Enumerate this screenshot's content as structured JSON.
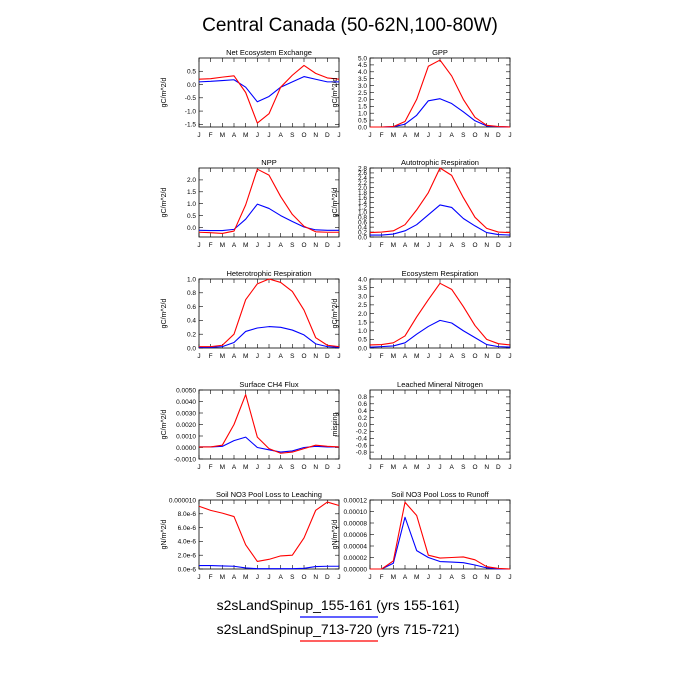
{
  "title": "Central Canada (50-62N,100-80W)",
  "colors": {
    "series1": "#0000ff",
    "series2": "#ff0000",
    "axis": "#000000"
  },
  "legend": [
    {
      "label": "s2sLandSpinup_155-161 (yrs 155-161)",
      "color": "#0000ff"
    },
    {
      "label": "s2sLandSpinup_713-720 (yrs 715-721)",
      "color": "#ff0000"
    }
  ],
  "chart_data": [
    {
      "type": "line",
      "title": "Net Ecosystem Exchange",
      "ylabel": "gC/m^2/d",
      "categories": [
        "J",
        "F",
        "M",
        "A",
        "M",
        "J",
        "J",
        "A",
        "S",
        "O",
        "N",
        "D",
        "J"
      ],
      "ylim": [
        -1.6,
        1.0
      ],
      "yticks": [
        -1.5,
        -1.0,
        -0.5,
        0.0,
        0.5
      ],
      "yticklabels": [
        "-1.5",
        "-1.0",
        "-0.5",
        "0.0",
        "0.5"
      ],
      "series": [
        {
          "color": "#0000ff",
          "values": [
            0.1,
            0.12,
            0.15,
            0.18,
            -0.1,
            -0.65,
            -0.45,
            -0.1,
            0.1,
            0.3,
            0.2,
            0.1,
            0.1
          ]
        },
        {
          "color": "#ff0000",
          "values": [
            0.2,
            0.22,
            0.28,
            0.33,
            -0.3,
            -1.45,
            -1.1,
            -0.1,
            0.35,
            0.72,
            0.42,
            0.25,
            0.2
          ]
        }
      ]
    },
    {
      "type": "line",
      "title": "GPP",
      "ylabel": "gC/m^2/d",
      "categories": [
        "J",
        "F",
        "M",
        "A",
        "M",
        "J",
        "J",
        "A",
        "S",
        "O",
        "N",
        "D",
        "J"
      ],
      "ylim": [
        0.0,
        5.0
      ],
      "yticks": [
        0.0,
        0.5,
        1.0,
        1.5,
        2.0,
        2.5,
        3.0,
        3.5,
        4.0,
        4.5,
        5.0
      ],
      "yticklabels": [
        "0.0",
        "0.5",
        "1.0",
        "1.5",
        "2.0",
        "2.5",
        "3.0",
        "3.5",
        "4.0",
        "4.5",
        "5.0"
      ],
      "series": [
        {
          "color": "#0000ff",
          "values": [
            0.0,
            0.0,
            0.02,
            0.2,
            0.85,
            1.9,
            2.05,
            1.7,
            1.1,
            0.45,
            0.08,
            0.02,
            0.0
          ]
        },
        {
          "color": "#ff0000",
          "values": [
            0.0,
            0.0,
            0.03,
            0.4,
            2.0,
            4.4,
            4.85,
            3.7,
            2.0,
            0.7,
            0.12,
            0.03,
            0.0
          ]
        }
      ]
    },
    {
      "type": "line",
      "title": "NPP",
      "ylabel": "gC/m^2/d",
      "categories": [
        "J",
        "F",
        "M",
        "A",
        "M",
        "J",
        "J",
        "A",
        "S",
        "O",
        "N",
        "D",
        "J"
      ],
      "ylim": [
        -0.4,
        2.5
      ],
      "yticks": [
        0.0,
        0.5,
        1.0,
        1.5,
        2.0
      ],
      "yticklabels": [
        "0.0",
        "0.5",
        "1.0",
        "1.5",
        "2.0"
      ],
      "series": [
        {
          "color": "#0000ff",
          "values": [
            -0.12,
            -0.13,
            -0.13,
            -0.08,
            0.35,
            0.98,
            0.8,
            0.5,
            0.25,
            0.02,
            -0.1,
            -0.12,
            -0.12
          ]
        },
        {
          "color": "#ff0000",
          "values": [
            -0.2,
            -0.22,
            -0.25,
            -0.15,
            0.95,
            2.45,
            2.2,
            1.3,
            0.55,
            0.05,
            -0.18,
            -0.2,
            -0.2
          ]
        }
      ]
    },
    {
      "type": "line",
      "title": "Autotrophic Respiration",
      "ylabel": "gC/m^2/d",
      "categories": [
        "J",
        "F",
        "M",
        "A",
        "M",
        "J",
        "J",
        "A",
        "S",
        "O",
        "N",
        "D",
        "J"
      ],
      "ylim": [
        0.0,
        2.8
      ],
      "yticks": [
        0.0,
        0.2,
        0.4,
        0.6,
        0.8,
        1.0,
        1.2,
        1.4,
        1.6,
        1.8,
        2.0,
        2.2,
        2.4,
        2.6,
        2.8
      ],
      "yticklabels": [
        "0.0",
        "0.2",
        "0.4",
        "0.6",
        "0.8",
        "1.0",
        "1.2",
        "1.4",
        "1.6",
        "1.8",
        "2.0",
        "2.2",
        "2.4",
        "2.6",
        "2.8"
      ],
      "series": [
        {
          "color": "#0000ff",
          "values": [
            0.08,
            0.08,
            0.12,
            0.25,
            0.5,
            0.9,
            1.3,
            1.2,
            0.75,
            0.45,
            0.18,
            0.1,
            0.08
          ]
        },
        {
          "color": "#ff0000",
          "values": [
            0.18,
            0.2,
            0.25,
            0.5,
            1.1,
            1.8,
            2.8,
            2.5,
            1.6,
            0.8,
            0.35,
            0.2,
            0.18
          ]
        }
      ]
    },
    {
      "type": "line",
      "title": "Heterotrophic Respiration",
      "ylabel": "gC/m^2/d",
      "categories": [
        "J",
        "F",
        "M",
        "A",
        "M",
        "J",
        "J",
        "A",
        "S",
        "O",
        "N",
        "D",
        "J"
      ],
      "ylim": [
        0.0,
        1.0
      ],
      "yticks": [
        0.0,
        0.2,
        0.4,
        0.6,
        0.8,
        1.0
      ],
      "yticklabels": [
        "0.0",
        "0.2",
        "0.4",
        "0.6",
        "0.8",
        "1.0"
      ],
      "series": [
        {
          "color": "#0000ff",
          "values": [
            0.01,
            0.01,
            0.02,
            0.08,
            0.24,
            0.29,
            0.31,
            0.3,
            0.26,
            0.19,
            0.06,
            0.02,
            0.01
          ]
        },
        {
          "color": "#ff0000",
          "values": [
            0.02,
            0.02,
            0.04,
            0.2,
            0.7,
            0.93,
            1.0,
            0.95,
            0.82,
            0.55,
            0.15,
            0.04,
            0.02
          ]
        }
      ]
    },
    {
      "type": "line",
      "title": "Ecosystem Respiration",
      "ylabel": "gC/m^2/d",
      "categories": [
        "J",
        "F",
        "M",
        "A",
        "M",
        "J",
        "J",
        "A",
        "S",
        "O",
        "N",
        "D",
        "J"
      ],
      "ylim": [
        0.0,
        4.0
      ],
      "yticks": [
        0.0,
        0.5,
        1.0,
        1.5,
        2.0,
        2.5,
        3.0,
        3.5,
        4.0
      ],
      "yticklabels": [
        "0.0",
        "0.5",
        "1.0",
        "1.5",
        "2.0",
        "2.5",
        "3.0",
        "3.5",
        "4.0"
      ],
      "series": [
        {
          "color": "#0000ff",
          "values": [
            0.05,
            0.08,
            0.12,
            0.3,
            0.8,
            1.25,
            1.6,
            1.45,
            1.0,
            0.6,
            0.2,
            0.08,
            0.05
          ]
        },
        {
          "color": "#ff0000",
          "values": [
            0.18,
            0.2,
            0.3,
            0.7,
            1.8,
            2.8,
            3.75,
            3.4,
            2.4,
            1.3,
            0.5,
            0.25,
            0.18
          ]
        }
      ]
    },
    {
      "type": "line",
      "title": "Surface CH4 Flux",
      "ylabel": "gC/m^2/d",
      "categories": [
        "J",
        "F",
        "M",
        "A",
        "M",
        "J",
        "J",
        "A",
        "S",
        "O",
        "N",
        "D",
        "J"
      ],
      "ylim": [
        -0.001,
        0.005
      ],
      "yticks": [
        -0.001,
        0.0,
        0.001,
        0.002,
        0.003,
        0.004,
        0.005
      ],
      "yticklabels": [
        "-0.0010",
        "0.0000",
        "0.0010",
        "0.0020",
        "0.0030",
        "0.0040",
        "0.0050"
      ],
      "series": [
        {
          "color": "#0000ff",
          "values": [
            5e-05,
            5e-05,
            0.0001,
            0.0006,
            0.0009,
            0.0,
            -0.0002,
            -0.0004,
            -0.0003,
            0.0,
            0.0001,
            5e-05,
            5e-05
          ]
        },
        {
          "color": "#ff0000",
          "values": [
            5e-05,
            5e-05,
            0.0002,
            0.002,
            0.0046,
            0.0009,
            -0.0001,
            -0.0005,
            -0.0004,
            -0.0001,
            0.0002,
            0.0001,
            5e-05
          ]
        }
      ]
    },
    {
      "type": "line",
      "title": "Leached Mineral Nitrogen",
      "ylabel": "missing",
      "categories": [
        "J",
        "F",
        "M",
        "A",
        "M",
        "J",
        "J",
        "A",
        "S",
        "O",
        "N",
        "D",
        "J"
      ],
      "ylim": [
        -1.0,
        1.0
      ],
      "yticks": [
        -0.8,
        -0.6,
        -0.4,
        -0.2,
        0.0,
        0.2,
        0.4,
        0.6,
        0.8
      ],
      "yticklabels": [
        "-0.8",
        "-0.6",
        "-0.4",
        "-0.2",
        "0.0",
        "0.2",
        "0.4",
        "0.6",
        "0.8"
      ],
      "series": []
    },
    {
      "type": "line",
      "title": "Soil NO3 Pool Loss to Leaching",
      "ylabel": "gN/m^2/d",
      "categories": [
        "J",
        "F",
        "M",
        "A",
        "M",
        "J",
        "J",
        "A",
        "S",
        "O",
        "N",
        "D",
        "J"
      ],
      "ylim": [
        0.0,
        1e-05
      ],
      "yticks": [
        0.0,
        2e-06,
        4e-06,
        6e-06,
        8e-06,
        1e-05
      ],
      "yticklabels": [
        "0.0e-6",
        "2.0e-6",
        "4.0e-6",
        "6.0e-6",
        "8.0e-6",
        "0.000010"
      ],
      "series": [
        {
          "color": "#0000ff",
          "values": [
            5e-07,
            5e-07,
            4.5e-07,
            4e-07,
            1.5e-07,
            5e-08,
            5e-08,
            5e-08,
            5e-08,
            1e-07,
            3.5e-07,
            4e-07,
            4e-07
          ]
        },
        {
          "color": "#ff0000",
          "values": [
            9.1e-06,
            8.5e-06,
            8.1e-06,
            7.6e-06,
            3.5e-06,
            1.1e-06,
            1.4e-06,
            1.9e-06,
            2e-06,
            4.5e-06,
            8.5e-06,
            9.7e-06,
            9.2e-06
          ]
        }
      ]
    },
    {
      "type": "line",
      "title": "Soil NO3 Pool Loss to Runoff",
      "ylabel": "gN/m^2/d",
      "categories": [
        "J",
        "F",
        "M",
        "A",
        "M",
        "J",
        "J",
        "A",
        "S",
        "O",
        "N",
        "D",
        "J"
      ],
      "ylim": [
        0.0,
        0.00012
      ],
      "yticks": [
        0.0,
        2e-05,
        4e-05,
        6e-05,
        8e-05,
        0.0001,
        0.00012
      ],
      "yticklabels": [
        "0.00000",
        "0.00002",
        "0.00004",
        "0.00006",
        "0.00008",
        "0.00010",
        "0.00012"
      ],
      "series": [
        {
          "color": "#0000ff",
          "values": [
            0.0,
            0.0,
            1e-05,
            9e-05,
            3.2e-05,
            2e-05,
            1.3e-05,
            1.2e-05,
            1.1e-05,
            7e-06,
            2e-06,
            0.0,
            0.0
          ]
        },
        {
          "color": "#ff0000",
          "values": [
            0.0,
            0.0,
            1.4e-05,
            0.000116,
            9.3e-05,
            2.4e-05,
            1.9e-05,
            2e-05,
            2.1e-05,
            1.6e-05,
            4e-06,
            1e-06,
            0.0
          ]
        }
      ]
    }
  ]
}
